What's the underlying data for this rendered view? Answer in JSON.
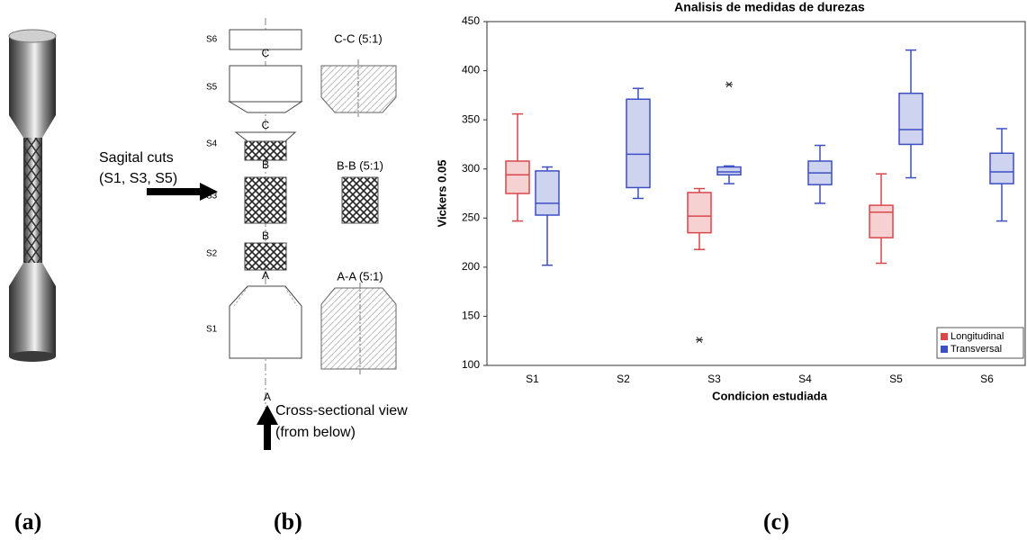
{
  "figure": {
    "panels": [
      "(a)",
      "(b)",
      "(c)"
    ]
  },
  "drawing": {
    "sections": [
      "S6",
      "S5",
      "S4",
      "S3",
      "S2",
      "S1"
    ],
    "cuts": [
      "C",
      "C",
      "B",
      "B",
      "A",
      "A"
    ],
    "views": [
      "C-C (5:1)",
      "B-B (5:1)",
      "A-A (5:1)"
    ],
    "sagittal_note": [
      "Sagital cuts",
      "(S1, S3, S5)"
    ],
    "view_note": [
      "Cross-sectional view",
      "(from below)"
    ]
  },
  "chart_data": {
    "type": "box",
    "title": "Analisis de medidas de durezas",
    "x_label": "Condicion estudiada",
    "y_label": "Vickers 0.05",
    "categories": [
      "S1",
      "S2",
      "S3",
      "S4",
      "S5",
      "S6"
    ],
    "ylim": [
      100,
      450
    ],
    "yticks": [
      100,
      150,
      200,
      250,
      300,
      350,
      400,
      450
    ],
    "legend": "lower right",
    "series": [
      {
        "name": "Longitudinal",
        "color": "#d9474b",
        "min": [
          247,
          null,
          218,
          null,
          204,
          null
        ],
        "q1": [
          275,
          null,
          235,
          null,
          230,
          null
        ],
        "median": [
          294,
          null,
          252,
          null,
          256,
          null
        ],
        "q3": [
          308,
          null,
          276,
          null,
          263,
          null
        ],
        "max": [
          356,
          null,
          280,
          null,
          295,
          null
        ],
        "outliers": [
          [],
          [],
          [
            126
          ],
          [],
          [],
          []
        ]
      },
      {
        "name": "Transversal",
        "color": "#3d4fc4",
        "min": [
          202,
          270,
          285,
          265,
          291,
          247
        ],
        "q1": [
          253,
          281,
          294,
          284,
          325,
          285
        ],
        "median": [
          265,
          315,
          297,
          296,
          340,
          297
        ],
        "q3": [
          298,
          371,
          302,
          308,
          377,
          316
        ],
        "max": [
          302,
          382,
          303,
          324,
          421,
          341
        ],
        "outliers": [
          [],
          [],
          [
            386
          ],
          [],
          [],
          []
        ]
      }
    ]
  }
}
